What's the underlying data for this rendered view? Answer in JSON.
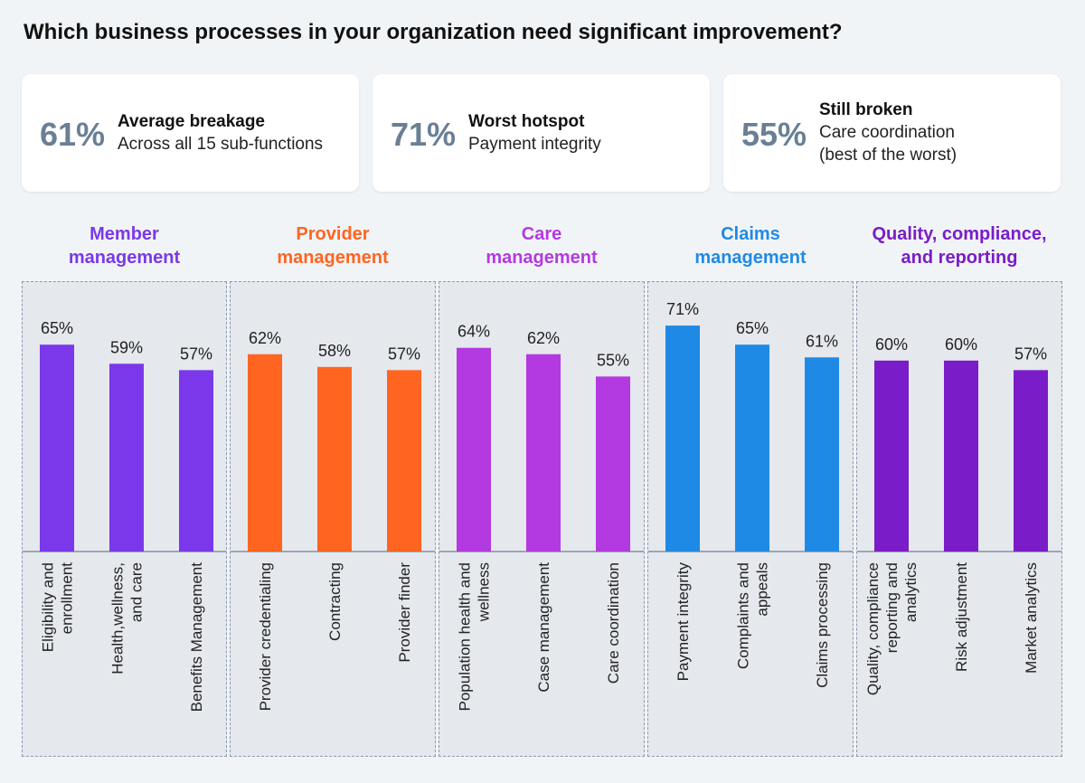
{
  "title": "Which business processes in your organization need significant improvement?",
  "cards": [
    {
      "value": "61%",
      "heading": "Average breakage",
      "lines": [
        "Across all 15 sub-functions"
      ]
    },
    {
      "value": "71%",
      "heading": "Worst hotspot",
      "lines": [
        "Payment integrity"
      ]
    },
    {
      "value": "55%",
      "heading": "Still broken",
      "lines": [
        "Care coordination",
        "(best of the worst)"
      ]
    }
  ],
  "chart_data": {
    "type": "bar",
    "value_suffix": "%",
    "ylim": [
      0,
      100
    ],
    "groups": [
      {
        "name_lines": [
          "Member",
          "management"
        ],
        "color": "#7a38ea",
        "bars": [
          {
            "label_lines": [
              "Eligibility and",
              "enrollment"
            ],
            "value": 65
          },
          {
            "label_lines": [
              "Health,wellness,",
              "and care"
            ],
            "value": 59
          },
          {
            "label_lines": [
              "Benefits Management"
            ],
            "value": 57
          }
        ]
      },
      {
        "name_lines": [
          "Provider",
          "management"
        ],
        "color": "#ff6520",
        "bars": [
          {
            "label_lines": [
              "Provider credentialing"
            ],
            "value": 62
          },
          {
            "label_lines": [
              "Contracting"
            ],
            "value": 58
          },
          {
            "label_lines": [
              "Provider finder"
            ],
            "value": 57
          }
        ]
      },
      {
        "name_lines": [
          "Care",
          "management"
        ],
        "color": "#b33ae0",
        "bars": [
          {
            "label_lines": [
              "Population health and",
              "wellness"
            ],
            "value": 64
          },
          {
            "label_lines": [
              "Case management"
            ],
            "value": 62
          },
          {
            "label_lines": [
              "Care coordination"
            ],
            "value": 55
          }
        ]
      },
      {
        "name_lines": [
          "Claims",
          "management"
        ],
        "color": "#1f8ae6",
        "bars": [
          {
            "label_lines": [
              "Payment integrity"
            ],
            "value": 71
          },
          {
            "label_lines": [
              "Complaints and",
              "appeals"
            ],
            "value": 65
          },
          {
            "label_lines": [
              "Claims processing"
            ],
            "value": 61
          }
        ]
      },
      {
        "name_lines": [
          "Quality, compliance,",
          "and reporting"
        ],
        "color": "#7a1dc8",
        "bars": [
          {
            "label_lines": [
              "Quality, compliance",
              "reporting and",
              "analytics"
            ],
            "value": 60
          },
          {
            "label_lines": [
              "Risk adjustment"
            ],
            "value": 60
          },
          {
            "label_lines": [
              "Market analytics"
            ],
            "value": 57
          }
        ]
      }
    ]
  }
}
